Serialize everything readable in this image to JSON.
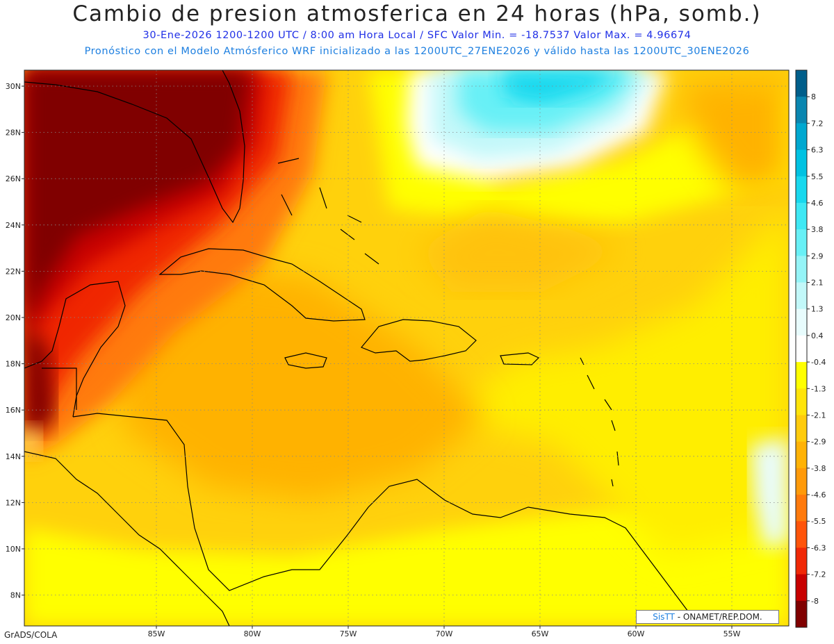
{
  "header": {
    "title": "Cambio de presion atmosferica en 24 horas (hPa, somb.)",
    "subtitle_line1": "30-Ene-2026    1200-1200 UTC / 8:00 am Hora Local / SFC     Valor Min. = -18.7537  Valor Max. = 4.96674",
    "subtitle_line2": "Pronóstico con el Modelo Atmósferico WRF inicializado a las 1200UTC_27ENE2026 y válido hasta las  1200UTC_30ENE2026"
  },
  "map": {
    "lon_labels": [
      "85W",
      "80W",
      "75W",
      "70W",
      "65W",
      "60W",
      "55W"
    ],
    "lat_labels": [
      "30N",
      "28N",
      "26N",
      "24N",
      "22N",
      "20N",
      "18N",
      "16N",
      "14N",
      "12N",
      "10N",
      "8N"
    ]
  },
  "colorbar": {
    "labels": [
      "8",
      "7.2",
      "6.3",
      "5.5",
      "4.6",
      "3.8",
      "2.9",
      "2.1",
      "1.3",
      "0.4",
      "-0.4",
      "-1.3",
      "-2.1",
      "-2.9",
      "-3.8",
      "-4.6",
      "-5.5",
      "-6.3",
      "-7.2",
      "-8"
    ],
    "colors": [
      "#005e8a",
      "#0a86b0",
      "#00a8d0",
      "#00c2e2",
      "#18d8ee",
      "#3ee8f4",
      "#68f0f6",
      "#95f4f7",
      "#c2f8f9",
      "#e8fcfd",
      "#ffffff",
      "#ffff00",
      "#ffe40a",
      "#ffcb0c",
      "#ffb206",
      "#ff9a0a",
      "#ff7a0c",
      "#ff540a",
      "#f02806",
      "#c80000",
      "#800000"
    ]
  },
  "footer": {
    "software_label": "GrADS/COLA",
    "credit_brand": "SisTT",
    "credit_text": " - ONAMET/REP.DOM."
  }
}
